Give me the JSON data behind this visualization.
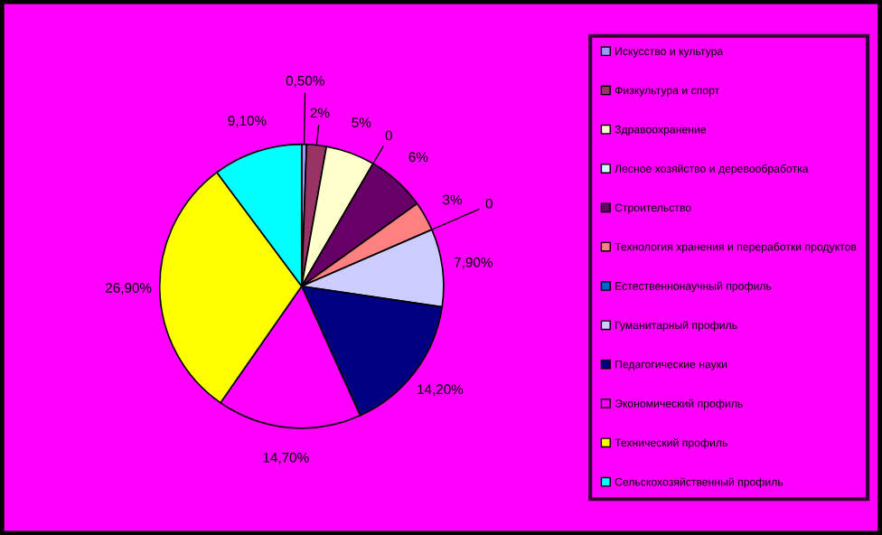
{
  "chart_data": {
    "type": "pie",
    "categories": [
      "Искусство и культура",
      "Физкультура и спорт",
      "Здравоохранение",
      "Лесное хозяйство и деревообработка",
      "Строительство",
      "Технология хранения и переработки продуктов",
      "Естественнонаучный профиль",
      "Гуманитарный профиль",
      "Педагогические науки",
      "Экономический профиль",
      "Технический профиль",
      "Сельскохозяйственный профиль"
    ],
    "values": [
      0.5,
      2,
      5,
      0,
      6,
      3,
      0,
      7.9,
      14.2,
      14.7,
      26.9,
      9.1
    ],
    "value_labels": [
      "0,50%",
      "2%",
      "5%",
      "0",
      "6%",
      "3%",
      "0",
      "7,90%",
      "14,20%",
      "14,70%",
      "26,90%",
      "9,10%"
    ],
    "colors": [
      "#9999ff",
      "#993366",
      "#ffffcc",
      "#ccffff",
      "#660066",
      "#ff8080",
      "#0066cc",
      "#ccccff",
      "#000080",
      "#ff00ff",
      "#ffff00",
      "#00ffff"
    ],
    "legend": "right"
  }
}
